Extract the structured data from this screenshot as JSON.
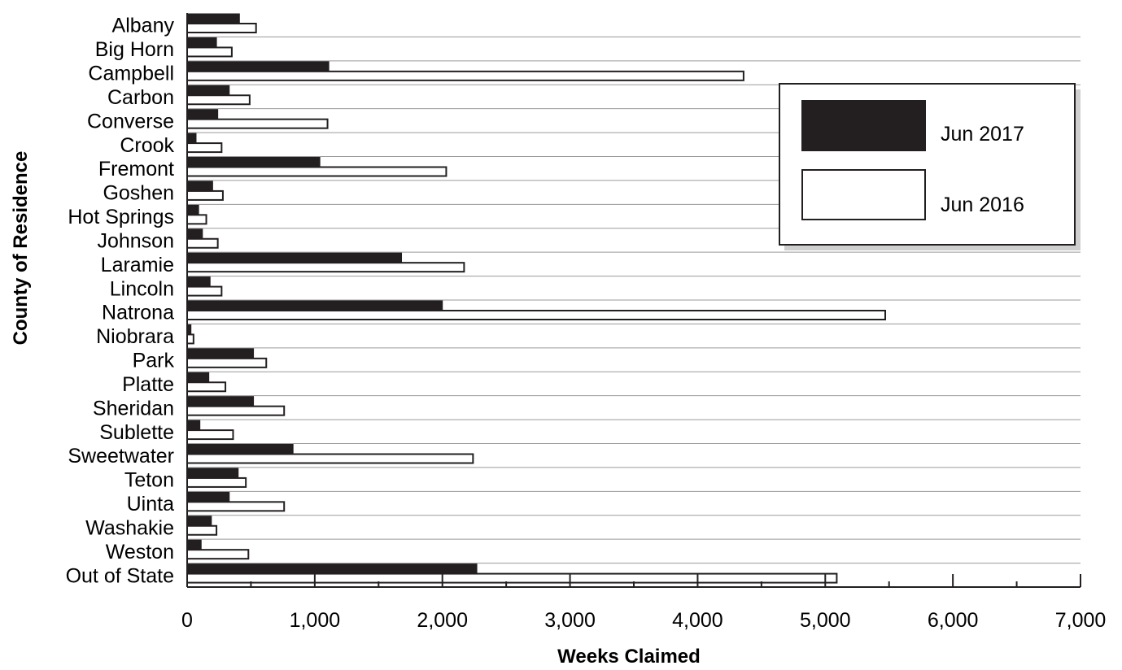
{
  "chart_data": {
    "type": "bar",
    "orientation": "horizontal",
    "title": "",
    "xlabel": "Weeks Claimed",
    "ylabel": "County of Residence",
    "xlim": [
      0,
      7000
    ],
    "x_ticks": [
      0,
      1000,
      2000,
      3000,
      4000,
      5000,
      6000,
      7000
    ],
    "x_tick_labels": [
      "0",
      "1,000",
      "2,000",
      "3,000",
      "4,000",
      "5,000",
      "6,000",
      "7,000"
    ],
    "grid": "horizontal lines between categories",
    "legend_position": "top-right",
    "categories": [
      "Albany",
      "Big Horn",
      "Campbell",
      "Carbon",
      "Converse",
      "Crook",
      "Fremont",
      "Goshen",
      "Hot Springs",
      "Johnson",
      "Laramie",
      "Lincoln",
      "Natrona",
      "Niobrara",
      "Park",
      "Platte",
      "Sheridan",
      "Sublette",
      "Sweetwater",
      "Teton",
      "Uinta",
      "Washakie",
      "Weston",
      "Out of State"
    ],
    "series": [
      {
        "name": "Jun 2017",
        "color": "#231f20",
        "values": [
          410,
          230,
          1110,
          330,
          240,
          70,
          1040,
          200,
          90,
          120,
          1680,
          180,
          2000,
          30,
          520,
          170,
          520,
          100,
          830,
          400,
          330,
          190,
          110,
          2270
        ]
      },
      {
        "name": "Jun 2016",
        "color": "#ffffff",
        "values": [
          540,
          350,
          4360,
          490,
          1100,
          270,
          2030,
          280,
          150,
          240,
          2170,
          270,
          5470,
          50,
          620,
          300,
          760,
          360,
          2240,
          460,
          760,
          230,
          480,
          5090
        ]
      }
    ]
  }
}
